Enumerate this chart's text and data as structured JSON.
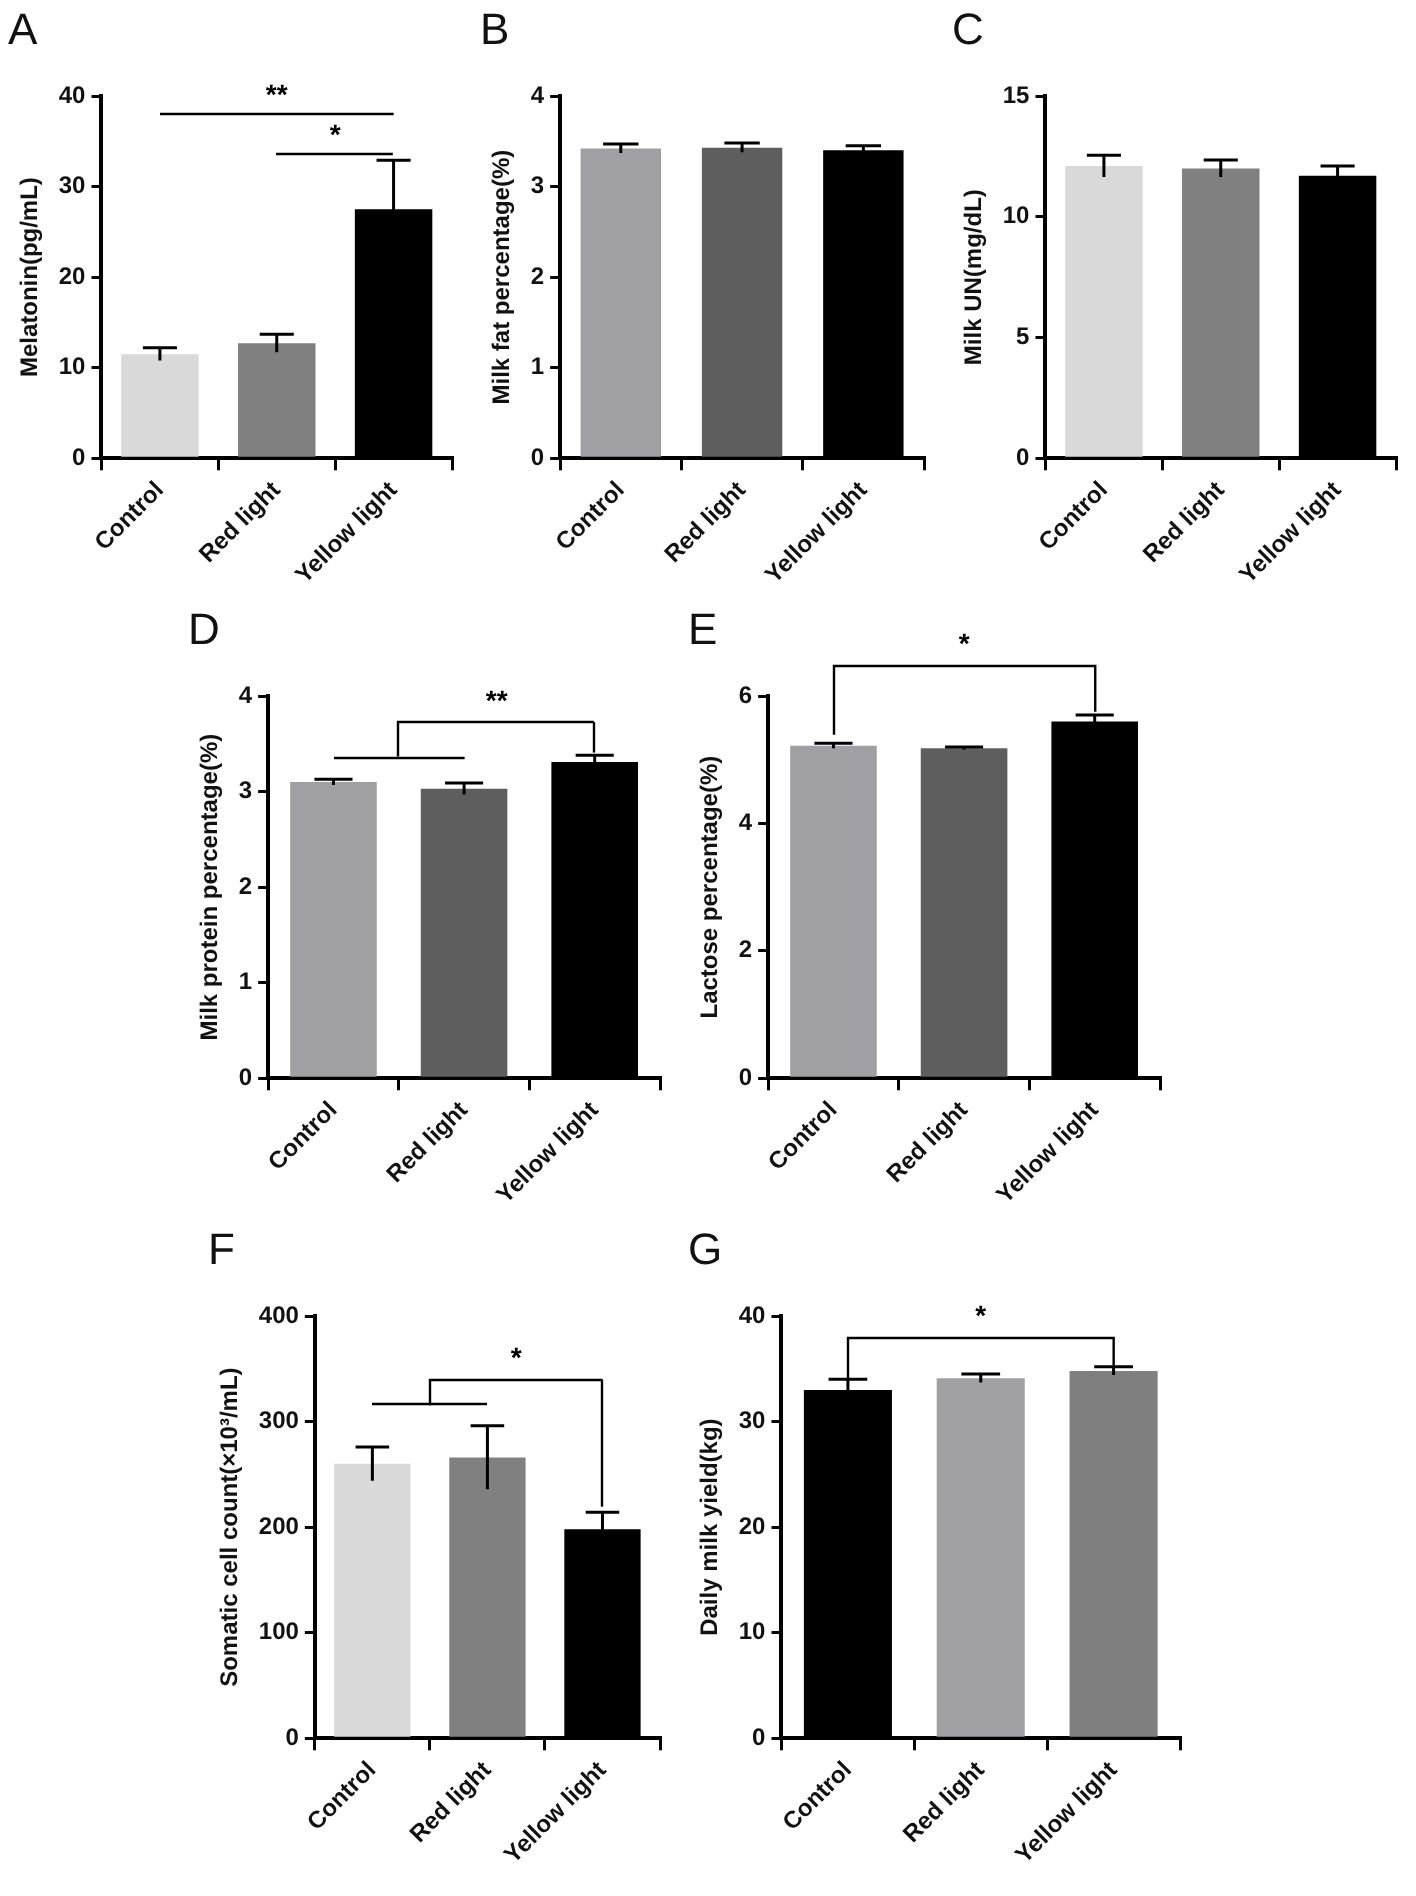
{
  "chart_data": [
    {
      "type": "bar",
      "title": "A",
      "ylabel": "Melatonin(pg/mL)",
      "categories": [
        "Control",
        "Red light",
        "Yellow light"
      ],
      "values": [
        11.5,
        12.7,
        27.5
      ],
      "errors": [
        0.7,
        1.0,
        5.4
      ],
      "colors": [
        "#d9d9d9",
        "#808080",
        "#000000"
      ],
      "ylim": [
        0,
        40
      ],
      "yticks": [
        0,
        10,
        20,
        30,
        40
      ],
      "grid": false,
      "legend": false,
      "annotations": [
        "**",
        "*"
      ]
    },
    {
      "type": "bar",
      "title": "B",
      "ylabel": "Milk fat percentage(%)",
      "categories": [
        "Control",
        "Red light",
        "Yellow light"
      ],
      "values": [
        3.42,
        3.43,
        3.4
      ],
      "errors": [
        0.05,
        0.05,
        0.05
      ],
      "colors": [
        "#a0a0a4",
        "#5e5e5e",
        "#000000"
      ],
      "ylim": [
        0,
        4
      ],
      "yticks": [
        0,
        1,
        2,
        3,
        4
      ],
      "grid": false,
      "legend": false
    },
    {
      "type": "bar",
      "title": "C",
      "ylabel": "Milk UN(mg/dL)",
      "categories": [
        "Control",
        "Red light",
        "Yellow light"
      ],
      "values": [
        12.1,
        12.0,
        11.7
      ],
      "errors": [
        0.45,
        0.35,
        0.4
      ],
      "colors": [
        "#d9d9d9",
        "#808080",
        "#000000"
      ],
      "ylim": [
        0,
        15
      ],
      "yticks": [
        0,
        5,
        10,
        15
      ],
      "grid": false,
      "legend": false
    },
    {
      "type": "bar",
      "title": "D",
      "ylabel": "Milk protein percentage(%)",
      "categories": [
        "Control",
        "Red light",
        "Yellow light"
      ],
      "values": [
        3.1,
        3.03,
        3.31
      ],
      "errors": [
        0.03,
        0.06,
        0.07
      ],
      "colors": [
        "#a0a0a4",
        "#5e5e5e",
        "#000000"
      ],
      "ylim": [
        0,
        4
      ],
      "yticks": [
        0,
        1,
        2,
        3,
        4
      ],
      "grid": false,
      "legend": false,
      "annotations": [
        "**"
      ]
    },
    {
      "type": "bar",
      "title": "E",
      "ylabel": "Lactose percentage(%)",
      "categories": [
        "Control",
        "Red light",
        "Yellow light"
      ],
      "values": [
        5.22,
        5.18,
        5.6
      ],
      "errors": [
        0.04,
        0.02,
        0.1
      ],
      "colors": [
        "#a0a0a4",
        "#5e5e5e",
        "#000000"
      ],
      "ylim": [
        0,
        6
      ],
      "yticks": [
        0,
        2,
        4,
        6
      ],
      "grid": false,
      "legend": false,
      "annotations": [
        "*"
      ]
    },
    {
      "type": "bar",
      "title": "F",
      "ylabel": "Somatic cell count(×10³/mL)",
      "categories": [
        "Control",
        "Red light",
        "Yellow light"
      ],
      "values": [
        260,
        266,
        198
      ],
      "errors": [
        16,
        30,
        16
      ],
      "colors": [
        "#d9d9d9",
        "#808080",
        "#000000"
      ],
      "ylim": [
        0,
        400
      ],
      "yticks": [
        0,
        100,
        200,
        300,
        400
      ],
      "grid": false,
      "legend": false,
      "annotations": [
        "*"
      ]
    },
    {
      "type": "bar",
      "title": "G",
      "ylabel": "Daily milk yield(kg)",
      "categories": [
        "Control",
        "Red light",
        "Yellow light"
      ],
      "values": [
        33.0,
        34.1,
        34.8
      ],
      "errors": [
        1.0,
        0.4,
        0.4
      ],
      "colors": [
        "#000000",
        "#a0a0a4",
        "#7f7f7f"
      ],
      "ylim": [
        0,
        40
      ],
      "yticks": [
        0,
        10,
        20,
        30,
        40
      ],
      "grid": false,
      "legend": false,
      "annotations": [
        "*"
      ]
    }
  ]
}
